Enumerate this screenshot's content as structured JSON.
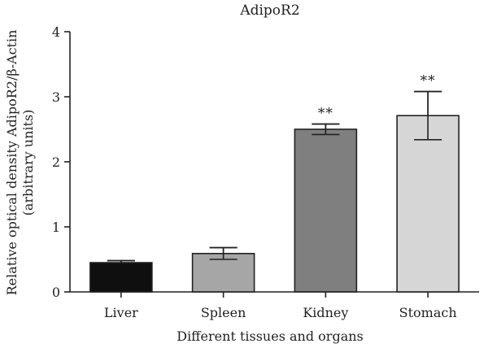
{
  "chart_data": {
    "type": "bar",
    "title": "AdipoR2",
    "xlabel": "Different tissues and organs",
    "ylabel_line1": "Relative optical density AdipoR2/β-Actin",
    "ylabel_line2": "(arbitrary units)",
    "categories": [
      "Liver",
      "Spleen",
      "Kidney",
      "Stomach"
    ],
    "values": [
      0.45,
      0.59,
      2.5,
      2.71
    ],
    "errors": [
      0.03,
      0.09,
      0.08,
      0.37
    ],
    "significance": [
      "",
      "",
      "**",
      "**"
    ],
    "ylim": [
      0,
      4
    ],
    "yticks": [
      0,
      1,
      2,
      3,
      4
    ],
    "bar_colors": [
      "#0f0f0f",
      "#a6a6a6",
      "#7f7f7f",
      "#d6d6d6"
    ],
    "grid": false,
    "legend": "none"
  }
}
